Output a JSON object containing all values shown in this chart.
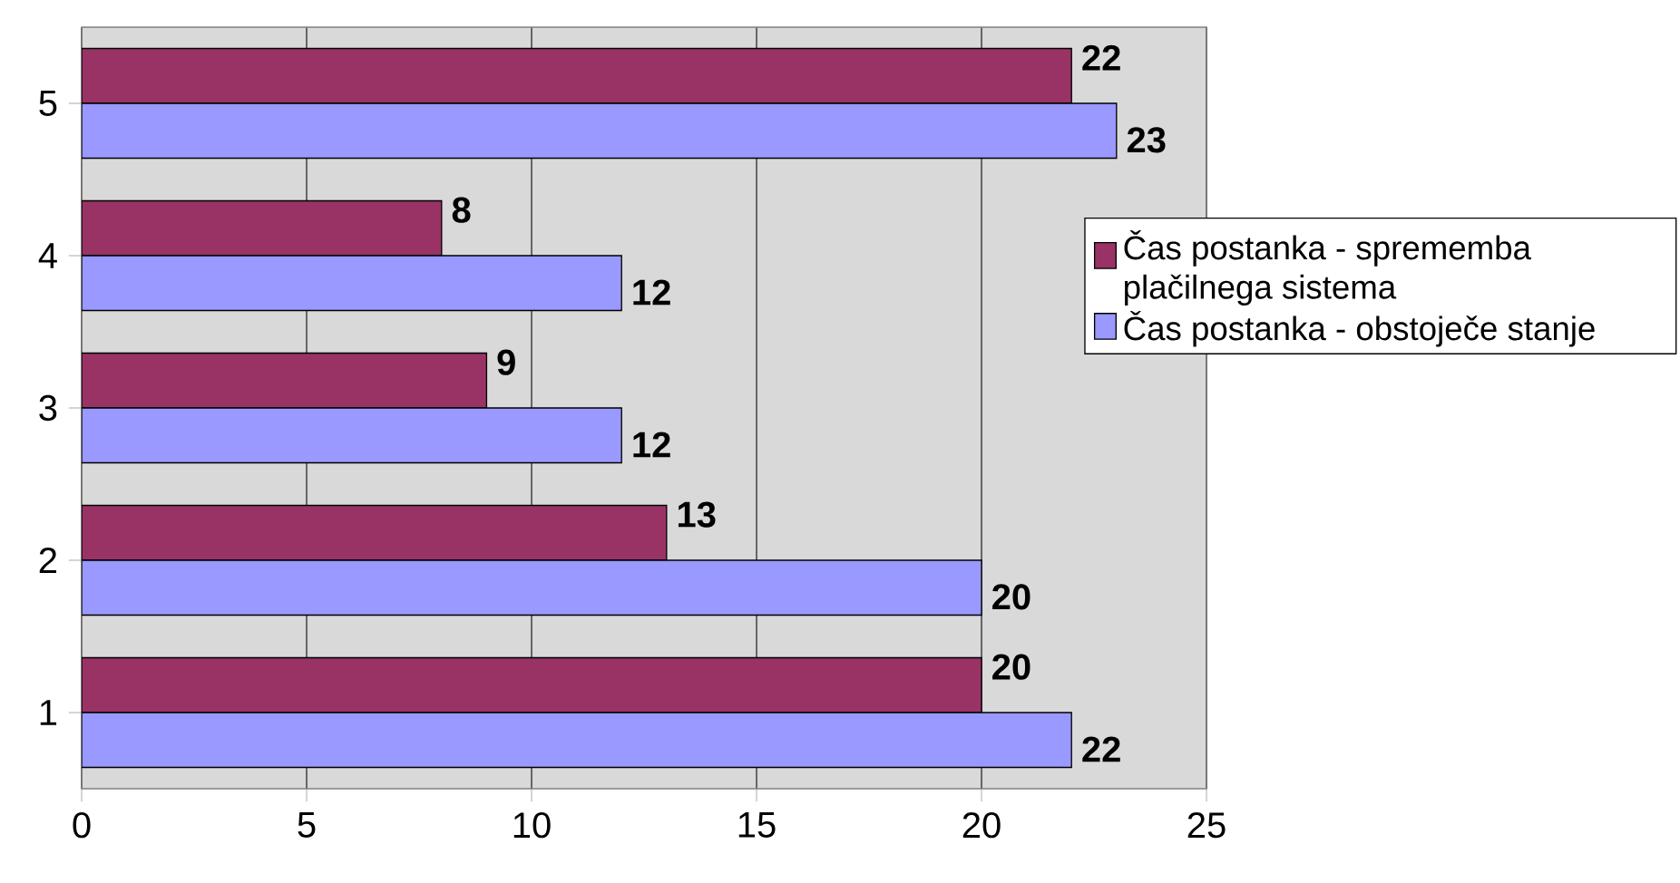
{
  "chart_data": {
    "type": "bar",
    "orientation": "horizontal",
    "categories": [
      "5",
      "4",
      "3",
      "2",
      "1"
    ],
    "series": [
      {
        "name": "Čas postanka - sprememba plačilnega sistema",
        "color": "#993366",
        "values": [
          22,
          8,
          9,
          13,
          20
        ]
      },
      {
        "name": "Čas postanka - obstoječe stanje",
        "color": "#9999ff",
        "values": [
          23,
          12,
          12,
          20,
          22
        ]
      }
    ],
    "xlim": [
      0,
      25
    ],
    "xticks": [
      0,
      5,
      10,
      15,
      20,
      25
    ],
    "grid": "x",
    "legend": "right",
    "data_labels": true
  }
}
